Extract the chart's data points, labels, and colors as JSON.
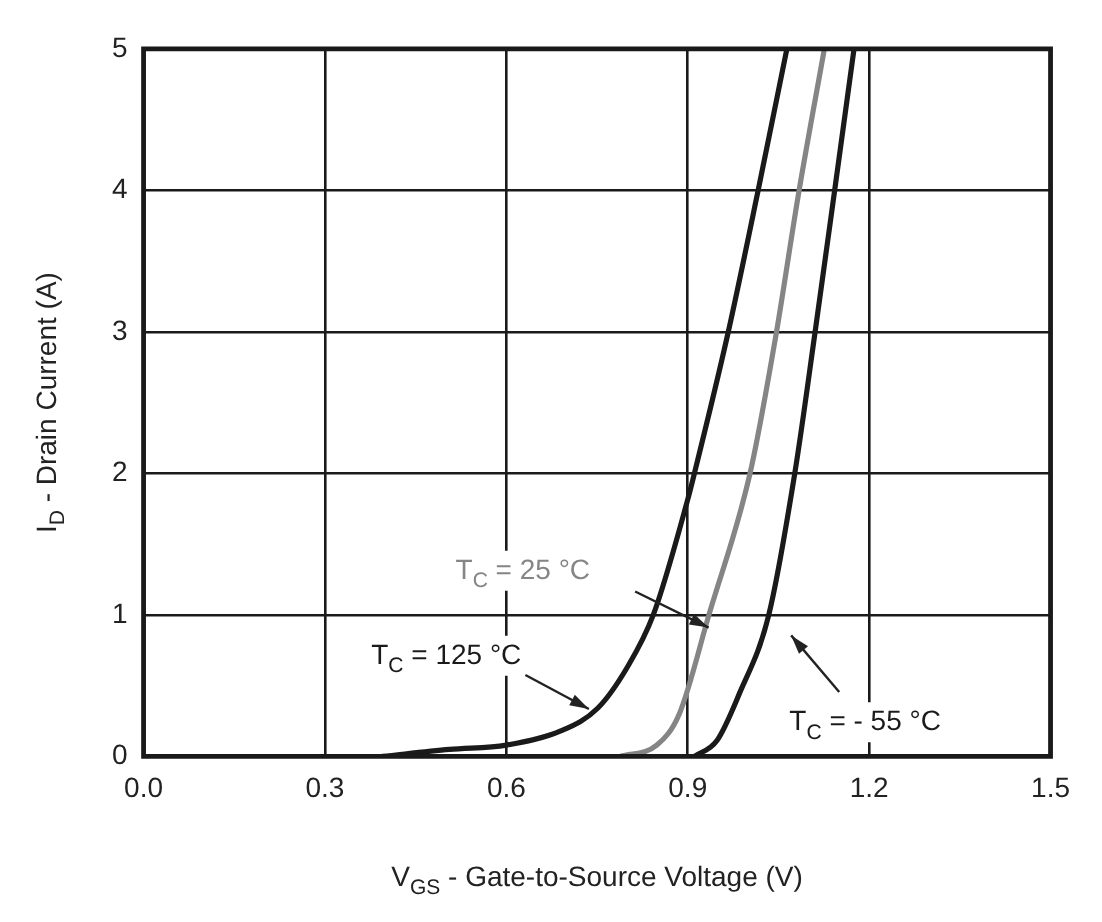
{
  "chart_data": {
    "type": "line",
    "xlabel": "V$_{GS}$ - Gate-to-Source Voltage (V)",
    "ylabel": "I$_{D}$ - Drain Current (A)",
    "xlim": [
      0,
      1.5
    ],
    "xticks": [
      {
        "value": 0,
        "label": "0.0"
      },
      0.3,
      0.6,
      0.9,
      1.2,
      1.5
    ],
    "ylim": [
      0,
      5
    ],
    "yticks": [
      0,
      1,
      2,
      3,
      4,
      5
    ],
    "grid": true,
    "marker": "none",
    "line_style": "solid",
    "series": [
      {
        "name": "T$_{C}$ = 125 °C",
        "color": "#1a1a1a",
        "x": [
          0.395,
          0.506,
          0.6,
          0.69,
          0.751,
          0.8,
          0.843,
          0.899,
          0.911,
          0.966,
          1.015,
          1.064
        ],
        "values": [
          0,
          0.05,
          0.08,
          0.18,
          0.34,
          0.63,
          1.0,
          1.8,
          2.0,
          2.98,
          3.97,
          5
        ]
      },
      {
        "name": "T$_{C}$ = 25 °C",
        "color": "#858585",
        "x": [
          0.788,
          0.849,
          0.886,
          0.935,
          1.003,
          1.046,
          1.083,
          1.126
        ],
        "values": [
          0,
          0.08,
          0.3,
          1.0,
          2.0,
          2.98,
          3.97,
          5
        ]
      },
      {
        "name": "T$_{C}$ = - 55 °C",
        "color": "#1a1a1a",
        "x": [
          0.911,
          0.948,
          0.985,
          1.034,
          1.077,
          1.11,
          1.142,
          1.175
        ],
        "values": [
          0,
          0.11,
          0.44,
          1.0,
          2.0,
          2.98,
          3.97,
          5
        ]
      }
    ]
  }
}
